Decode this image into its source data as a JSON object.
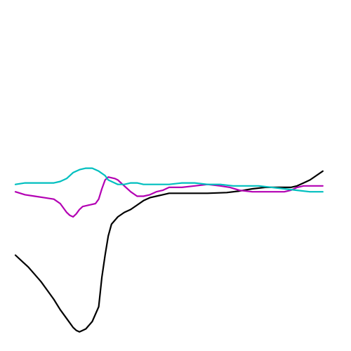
{
  "chart_data": {
    "type": "line",
    "xlim": [
      0,
      100
    ],
    "ylim": [
      -100,
      100
    ],
    "grid": false,
    "legend": "none",
    "series": [
      {
        "color": "#000000",
        "points": [
          [
            0,
            -35
          ],
          [
            2,
            -39
          ],
          [
            4,
            -43
          ],
          [
            6,
            -48
          ],
          [
            8,
            -53
          ],
          [
            10,
            -59
          ],
          [
            12,
            -65
          ],
          [
            14,
            -72
          ],
          [
            16,
            -78
          ],
          [
            18,
            -84
          ],
          [
            19,
            -86
          ],
          [
            20,
            -87
          ],
          [
            21,
            -86
          ],
          [
            22,
            -85
          ],
          [
            24,
            -80
          ],
          [
            26,
            -70
          ],
          [
            27,
            -50
          ],
          [
            28,
            -35
          ],
          [
            29,
            -22
          ],
          [
            30,
            -14
          ],
          [
            32,
            -9
          ],
          [
            34,
            -6
          ],
          [
            36,
            -4
          ],
          [
            38,
            -1
          ],
          [
            40,
            2
          ],
          [
            42,
            4
          ],
          [
            44,
            5
          ],
          [
            46,
            6
          ],
          [
            48,
            7
          ],
          [
            50,
            7
          ],
          [
            60,
            7
          ],
          [
            66,
            7.5
          ],
          [
            70,
            8.5
          ],
          [
            74,
            10
          ],
          [
            78,
            11
          ],
          [
            82,
            11
          ],
          [
            86,
            11
          ],
          [
            88,
            12
          ],
          [
            90,
            14
          ],
          [
            92,
            16
          ],
          [
            94,
            19
          ],
          [
            96,
            22
          ]
        ]
      },
      {
        "color": "#b300b3",
        "points": [
          [
            0,
            8
          ],
          [
            3,
            6
          ],
          [
            6,
            5
          ],
          [
            9,
            4
          ],
          [
            12,
            3
          ],
          [
            14,
            0
          ],
          [
            16,
            -6
          ],
          [
            17,
            -8
          ],
          [
            18,
            -9
          ],
          [
            19,
            -7
          ],
          [
            20,
            -4
          ],
          [
            21,
            -2
          ],
          [
            23,
            -1
          ],
          [
            25,
            0
          ],
          [
            26,
            3
          ],
          [
            27,
            10
          ],
          [
            28,
            16
          ],
          [
            29,
            18
          ],
          [
            31,
            17
          ],
          [
            32,
            16
          ],
          [
            34,
            12
          ],
          [
            36,
            8
          ],
          [
            38,
            5
          ],
          [
            40,
            5
          ],
          [
            42,
            6
          ],
          [
            44,
            8
          ],
          [
            46,
            9
          ],
          [
            48,
            11
          ],
          [
            52,
            11
          ],
          [
            56,
            12
          ],
          [
            60,
            13
          ],
          [
            64,
            12
          ],
          [
            67,
            11
          ],
          [
            70,
            9
          ],
          [
            74,
            8
          ],
          [
            80,
            8
          ],
          [
            84,
            8
          ],
          [
            86,
            9
          ],
          [
            88,
            11
          ],
          [
            90,
            12
          ],
          [
            93,
            12
          ],
          [
            96,
            12
          ]
        ]
      },
      {
        "color": "#00bfbf",
        "points": [
          [
            0,
            13
          ],
          [
            3,
            14
          ],
          [
            6,
            14
          ],
          [
            9,
            14
          ],
          [
            12,
            14
          ],
          [
            14,
            15
          ],
          [
            16,
            17
          ],
          [
            18,
            21
          ],
          [
            20,
            23
          ],
          [
            22,
            24
          ],
          [
            24,
            24
          ],
          [
            26,
            22
          ],
          [
            28,
            19
          ],
          [
            29,
            16
          ],
          [
            30,
            15
          ],
          [
            32,
            13
          ],
          [
            34,
            13
          ],
          [
            36,
            14
          ],
          [
            38,
            14
          ],
          [
            40,
            13
          ],
          [
            42,
            13
          ],
          [
            44,
            13
          ],
          [
            46,
            13
          ],
          [
            48,
            13
          ],
          [
            52,
            14
          ],
          [
            56,
            14
          ],
          [
            60,
            13
          ],
          [
            64,
            13
          ],
          [
            68,
            12
          ],
          [
            72,
            12
          ],
          [
            76,
            12
          ],
          [
            80,
            11
          ],
          [
            84,
            10
          ],
          [
            88,
            9
          ],
          [
            92,
            8
          ],
          [
            96,
            8
          ]
        ]
      }
    ]
  }
}
